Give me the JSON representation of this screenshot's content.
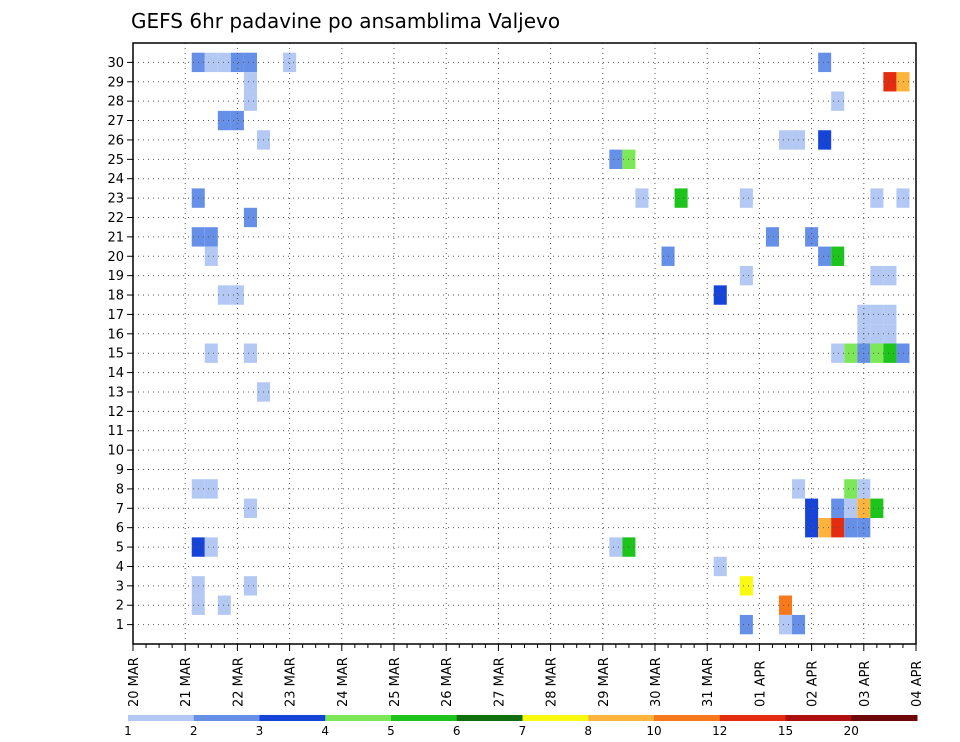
{
  "chart_data": {
    "type": "heatmap",
    "title": "GEFS 6hr padavine po ansamblima Valjevo",
    "xlabel": "",
    "ylabel": "",
    "grid": true,
    "x_start": "20 MAR",
    "steps_per_day": 4,
    "x_tick_labels": [
      "20 MAR",
      "21 MAR",
      "22 MAR",
      "23 MAR",
      "24 MAR",
      "25 MAR",
      "26 MAR",
      "27 MAR",
      "28 MAR",
      "29 MAR",
      "30 MAR",
      "31 MAR",
      "01 APR",
      "02 APR",
      "03 APR",
      "04 APR"
    ],
    "y_tick_labels": [
      "1",
      "2",
      "3",
      "4",
      "5",
      "6",
      "7",
      "8",
      "9",
      "10",
      "11",
      "12",
      "13",
      "14",
      "15",
      "16",
      "17",
      "18",
      "19",
      "20",
      "21",
      "22",
      "23",
      "24",
      "25",
      "26",
      "27",
      "28",
      "29",
      "30"
    ],
    "ylim": [
      1,
      30
    ],
    "legend": {
      "position": "bottom",
      "colors": [
        "#b4c8f4",
        "#6690e8",
        "#1644d8",
        "#7ce858",
        "#1cc41c",
        "#107010",
        "#fafa10",
        "#fcb43c",
        "#f8781c",
        "#e42c10",
        "#ae1010",
        "#6e0808"
      ],
      "labels": [
        "1",
        "2",
        "3",
        "4",
        "5",
        "6",
        "7",
        "8",
        "10",
        "12",
        "15",
        "20"
      ]
    },
    "cells": [
      {
        "t": "21 MAR 06",
        "m": 30,
        "c": 1
      },
      {
        "t": "21 MAR 12",
        "m": 30,
        "c": 0
      },
      {
        "t": "21 MAR 18",
        "m": 30,
        "c": 0
      },
      {
        "t": "22 MAR 00",
        "m": 30,
        "c": 1
      },
      {
        "t": "22 MAR 06",
        "m": 30,
        "c": 1
      },
      {
        "t": "23 MAR 00",
        "m": 30,
        "c": 0
      },
      {
        "t": "22 MAR 06",
        "m": 29,
        "c": 0
      },
      {
        "t": "22 MAR 06",
        "m": 28,
        "c": 0
      },
      {
        "t": "21 MAR 18",
        "m": 27,
        "c": 1
      },
      {
        "t": "22 MAR 00",
        "m": 27,
        "c": 1
      },
      {
        "t": "22 MAR 12",
        "m": 26,
        "c": 0
      },
      {
        "t": "21 MAR 06",
        "m": 23,
        "c": 1
      },
      {
        "t": "22 MAR 06",
        "m": 22,
        "c": 1
      },
      {
        "t": "21 MAR 06",
        "m": 21,
        "c": 1
      },
      {
        "t": "21 MAR 12",
        "m": 21,
        "c": 1
      },
      {
        "t": "21 MAR 12",
        "m": 20,
        "c": 0
      },
      {
        "t": "21 MAR 18",
        "m": 18,
        "c": 0
      },
      {
        "t": "22 MAR 00",
        "m": 18,
        "c": 0
      },
      {
        "t": "21 MAR 12",
        "m": 15,
        "c": 0
      },
      {
        "t": "22 MAR 06",
        "m": 15,
        "c": 0
      },
      {
        "t": "22 MAR 12",
        "m": 13,
        "c": 0
      },
      {
        "t": "21 MAR 06",
        "m": 8,
        "c": 0
      },
      {
        "t": "21 MAR 12",
        "m": 8,
        "c": 0
      },
      {
        "t": "22 MAR 06",
        "m": 7,
        "c": 0
      },
      {
        "t": "21 MAR 06",
        "m": 5,
        "c": 2
      },
      {
        "t": "21 MAR 12",
        "m": 5,
        "c": 0
      },
      {
        "t": "21 MAR 06",
        "m": 3,
        "c": 0
      },
      {
        "t": "22 MAR 06",
        "m": 3,
        "c": 0
      },
      {
        "t": "21 MAR 06",
        "m": 2,
        "c": 0
      },
      {
        "t": "21 MAR 18",
        "m": 2,
        "c": 0
      },
      {
        "t": "29 MAR 06",
        "m": 25,
        "c": 1
      },
      {
        "t": "29 MAR 12",
        "m": 25,
        "c": 3
      },
      {
        "t": "29 MAR 18",
        "m": 23,
        "c": 0
      },
      {
        "t": "30 MAR 12",
        "m": 23,
        "c": 4
      },
      {
        "t": "30 MAR 06",
        "m": 20,
        "c": 1
      },
      {
        "t": "29 MAR 06",
        "m": 5,
        "c": 0
      },
      {
        "t": "29 MAR 12",
        "m": 5,
        "c": 4
      },
      {
        "t": "31 MAR 06",
        "m": 18,
        "c": 2
      },
      {
        "t": "31 MAR 06",
        "m": 4,
        "c": 0
      },
      {
        "t": "31 MAR 18",
        "m": 23,
        "c": 0
      },
      {
        "t": "31 MAR 18",
        "m": 19,
        "c": 0
      },
      {
        "t": "31 MAR 18",
        "m": 3,
        "c": 6
      },
      {
        "t": "31 MAR 18",
        "m": 1,
        "c": 1
      },
      {
        "t": "01 APR 06",
        "m": 21,
        "c": 1
      },
      {
        "t": "01 APR 12",
        "m": 26,
        "c": 0
      },
      {
        "t": "01 APR 18",
        "m": 26,
        "c": 0
      },
      {
        "t": "01 APR 18",
        "m": 8,
        "c": 0
      },
      {
        "t": "01 APR 12",
        "m": 2,
        "c": 8
      },
      {
        "t": "01 APR 12",
        "m": 1,
        "c": 0
      },
      {
        "t": "01 APR 18",
        "m": 1,
        "c": 1
      },
      {
        "t": "02 APR 06",
        "m": 30,
        "c": 1
      },
      {
        "t": "02 APR 06",
        "m": 26,
        "c": 2
      },
      {
        "t": "02 APR 00",
        "m": 21,
        "c": 1
      },
      {
        "t": "02 APR 06",
        "m": 20,
        "c": 1
      },
      {
        "t": "02 APR 12",
        "m": 20,
        "c": 4
      },
      {
        "t": "02 APR 12",
        "m": 28,
        "c": 0
      },
      {
        "t": "02 APR 12",
        "m": 15,
        "c": 0
      },
      {
        "t": "02 APR 18",
        "m": 15,
        "c": 3
      },
      {
        "t": "03 APR 00",
        "m": 15,
        "c": 1
      },
      {
        "t": "03 APR 06",
        "m": 15,
        "c": 3
      },
      {
        "t": "03 APR 12",
        "m": 15,
        "c": 4
      },
      {
        "t": "03 APR 18",
        "m": 15,
        "c": 1
      },
      {
        "t": "03 APR 00",
        "m": 16,
        "c": 0
      },
      {
        "t": "03 APR 06",
        "m": 16,
        "c": 0
      },
      {
        "t": "03 APR 12",
        "m": 16,
        "c": 0
      },
      {
        "t": "03 APR 00",
        "m": 17,
        "c": 0
      },
      {
        "t": "03 APR 06",
        "m": 17,
        "c": 0
      },
      {
        "t": "03 APR 12",
        "m": 17,
        "c": 0
      },
      {
        "t": "03 APR 06",
        "m": 19,
        "c": 0
      },
      {
        "t": "03 APR 12",
        "m": 19,
        "c": 0
      },
      {
        "t": "03 APR 06",
        "m": 23,
        "c": 0
      },
      {
        "t": "03 APR 18",
        "m": 23,
        "c": 0
      },
      {
        "t": "03 APR 12",
        "m": 29,
        "c": 9
      },
      {
        "t": "03 APR 18",
        "m": 29,
        "c": 7
      },
      {
        "t": "02 APR 18",
        "m": 8,
        "c": 3
      },
      {
        "t": "03 APR 00",
        "m": 8,
        "c": 0
      },
      {
        "t": "02 APR 00",
        "m": 7,
        "c": 2
      },
      {
        "t": "02 APR 12",
        "m": 7,
        "c": 1
      },
      {
        "t": "02 APR 18",
        "m": 7,
        "c": 0
      },
      {
        "t": "03 APR 00",
        "m": 7,
        "c": 7
      },
      {
        "t": "03 APR 06",
        "m": 7,
        "c": 4
      },
      {
        "t": "02 APR 00",
        "m": 6,
        "c": 2
      },
      {
        "t": "02 APR 06",
        "m": 6,
        "c": 7
      },
      {
        "t": "02 APR 12",
        "m": 6,
        "c": 9
      },
      {
        "t": "02 APR 18",
        "m": 6,
        "c": 1
      },
      {
        "t": "03 APR 00",
        "m": 6,
        "c": 1
      }
    ]
  }
}
